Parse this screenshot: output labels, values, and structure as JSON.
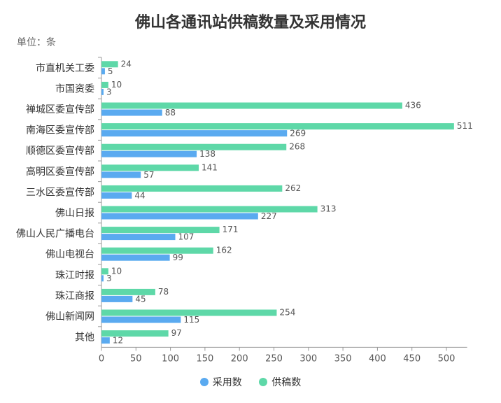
{
  "chart_data": {
    "type": "bar",
    "orientation": "horizontal",
    "title": "佛山各通讯站供稿数量及采用情况",
    "unit_label": "单位：条",
    "categories": [
      "市直机关工委",
      "市国资委",
      "禅城区委宣传部",
      "南海区委宣传部",
      "顺德区委宣传部",
      "高明区委宣传部",
      "三水区委宣传部",
      "佛山日报",
      "佛山人民广播电台",
      "佛山电视台",
      "珠江时报",
      "珠江商报",
      "佛山新闻网",
      "其他"
    ],
    "series": [
      {
        "name": "供稿数",
        "color": "#5ed8a8",
        "values": [
          24,
          10,
          436,
          511,
          268,
          141,
          262,
          313,
          171,
          162,
          10,
          78,
          254,
          97
        ]
      },
      {
        "name": "采用数",
        "color": "#5aaaf0",
        "values": [
          5,
          3,
          88,
          269,
          138,
          57,
          44,
          227,
          107,
          99,
          3,
          45,
          115,
          12
        ]
      }
    ],
    "xlim": [
      0,
      530
    ],
    "xticks": [
      0,
      50,
      100,
      150,
      200,
      250,
      300,
      350,
      400,
      450,
      500
    ],
    "legend": [
      {
        "name": "采用数",
        "color": "#5aaaf0"
      },
      {
        "name": "供稿数",
        "color": "#5ed8a8"
      }
    ],
    "legend_position": "bottom",
    "grid": false
  }
}
